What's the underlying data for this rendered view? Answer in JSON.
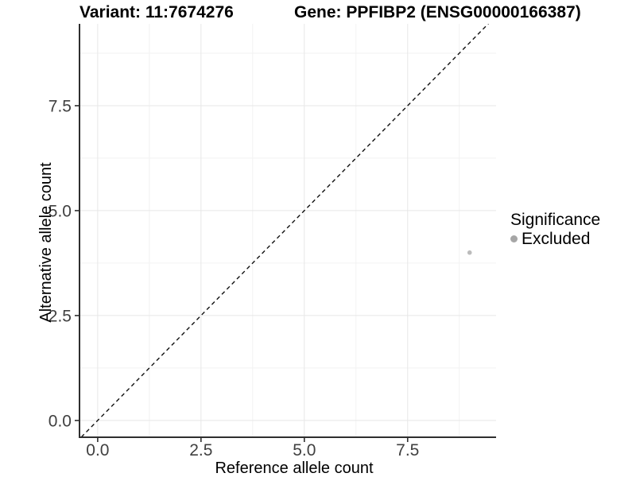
{
  "header": {
    "variant_title": "Variant: 11:7674276",
    "gene_title": "Gene: PPFIBP2 (ENSG00000166387)"
  },
  "colors": {
    "background": "#ffffff",
    "grid_major": "#e7e7e7",
    "grid_minor": "#f2f2f2",
    "axis_line": "#2f2f2f",
    "tick_mark": "#2f2f2f",
    "tick_label": "#404040",
    "reference_line": "#111111",
    "point": "#bcbcbc",
    "legend_key": "#a6a6a6"
  },
  "chart_data": {
    "type": "scatter",
    "titles": {
      "left": "Variant: 11:7674276",
      "right": "Gene: PPFIBP2 (ENSG00000166387)"
    },
    "xlabel": "Reference allele count",
    "ylabel": "Alternative allele count",
    "xlim": [
      -0.44,
      9.64
    ],
    "ylim": [
      -0.4,
      9.45
    ],
    "x_major_ticks": [
      0,
      2.5,
      5,
      7.5
    ],
    "x_tick_labels": [
      "0.0",
      "2.5",
      "5.0",
      "7.5"
    ],
    "x_minor_ticks": [
      1.25,
      3.75,
      6.25,
      8.75
    ],
    "y_major_ticks": [
      0,
      2.5,
      5,
      7.5
    ],
    "y_tick_labels": [
      "0.0",
      "2.5",
      "5.0",
      "7.5"
    ],
    "y_minor_ticks": [
      1.25,
      3.75,
      6.25,
      8.75
    ],
    "grid": "major+minor",
    "reference_line": {
      "kind": "identity y=x",
      "style": "dashed",
      "color": "#111111"
    },
    "series": [
      {
        "name": "Excluded",
        "color": "#bcbcbc",
        "point_radius": 2.8,
        "points": [
          {
            "x": 9,
            "y": 4
          }
        ]
      }
    ],
    "legend": {
      "title": "Significance",
      "position": "right",
      "items": [
        {
          "label": "Excluded",
          "color": "#a6a6a6",
          "key_radius": 4.5
        }
      ]
    }
  }
}
